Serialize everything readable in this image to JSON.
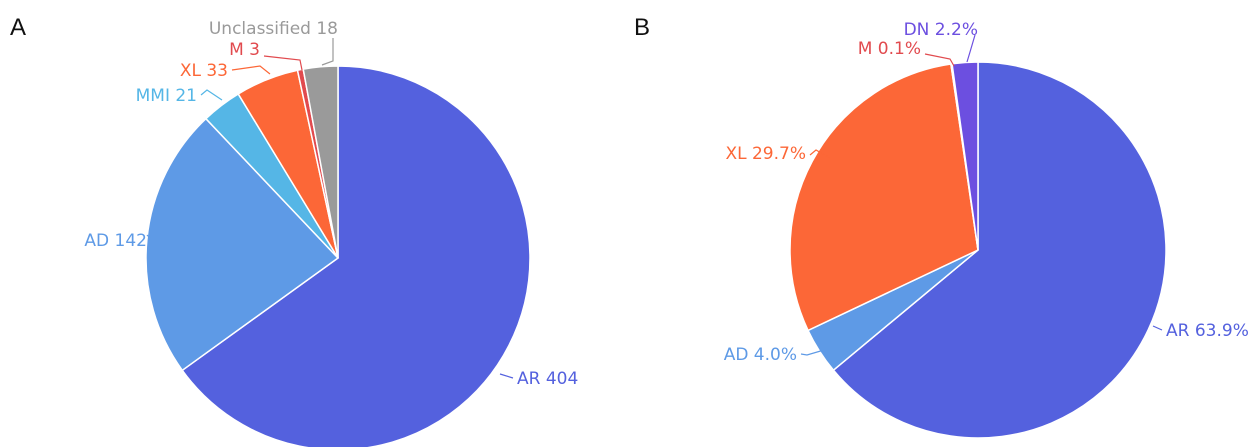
{
  "chart_data": [
    {
      "type": "pie",
      "panel": "A",
      "slices": [
        {
          "label": "AR 404",
          "category": "AR",
          "value": 404,
          "color": "#5461de"
        },
        {
          "label": "AD 142",
          "category": "AD",
          "value": 142,
          "color": "#5e9ae6"
        },
        {
          "label": "MMI 21",
          "category": "MMI",
          "value": 21,
          "color": "#55b6e6"
        },
        {
          "label": "XL 33",
          "category": "XL",
          "value": 33,
          "color": "#fc6737"
        },
        {
          "label": "M 3",
          "category": "M",
          "value": 3,
          "color": "#e14a4e"
        },
        {
          "label": "Unclassified 18",
          "category": "Unclassified",
          "value": 18,
          "color": "#9a9a9a"
        }
      ]
    },
    {
      "type": "pie",
      "panel": "B",
      "slices": [
        {
          "label": "AR 63.9%",
          "category": "AR",
          "value": 63.9,
          "color": "#5461de"
        },
        {
          "label": "AD 4.0%",
          "category": "AD",
          "value": 4.0,
          "color": "#5e9ae6"
        },
        {
          "label": "XL 29.7%",
          "category": "XL",
          "value": 29.7,
          "color": "#fc6737"
        },
        {
          "label": "M 0.1%",
          "category": "M",
          "value": 0.1,
          "color": "#e14a4e"
        },
        {
          "label": "DN 2.2%",
          "category": "DN",
          "value": 2.2,
          "color": "#6c4fe0"
        }
      ]
    }
  ]
}
